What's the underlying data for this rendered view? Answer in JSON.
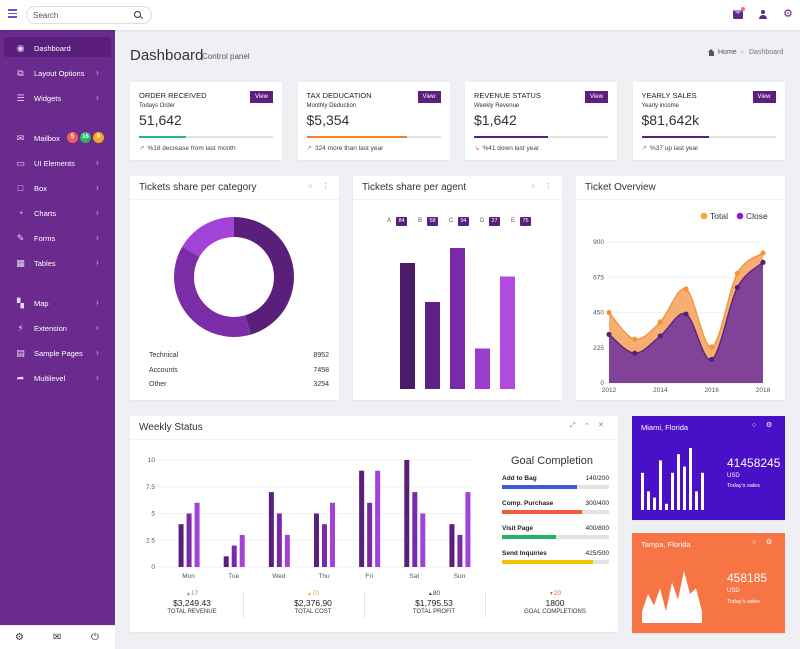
{
  "search": {
    "placeholder": "Search"
  },
  "sidebar": {
    "items": [
      {
        "label": "Dashboard",
        "icon": "dashboard-icon",
        "glyph": "◉",
        "chevron": false
      },
      {
        "label": "Layout Options",
        "icon": "layout-icon",
        "glyph": "⧉",
        "chevron": true
      },
      {
        "label": "Widgets",
        "icon": "widgets-icon",
        "glyph": "☰",
        "chevron": true
      },
      {
        "label": "Mailbox",
        "icon": "mailbox-icon",
        "glyph": "✉",
        "chevron": false
      },
      {
        "label": "UI Elements",
        "icon": "monitor-icon",
        "glyph": "▭",
        "chevron": true
      },
      {
        "label": "Box",
        "icon": "box-icon",
        "glyph": "□",
        "chevron": true
      },
      {
        "label": "Charts",
        "icon": "pie-chart-icon",
        "glyph": "◔",
        "chevron": true
      },
      {
        "label": "Forms",
        "icon": "edit-icon",
        "glyph": "✎",
        "chevron": true
      },
      {
        "label": "Tables",
        "icon": "table-icon",
        "glyph": "▦",
        "chevron": true
      },
      {
        "label": "Map",
        "icon": "map-icon",
        "glyph": "▚",
        "chevron": true
      },
      {
        "label": "Extension",
        "icon": "plug-icon",
        "glyph": "⚡",
        "chevron": true
      },
      {
        "label": "Sample Pages",
        "icon": "file-icon",
        "glyph": "▤",
        "chevron": true
      },
      {
        "label": "Multilevel",
        "icon": "share-icon",
        "glyph": "➦",
        "chevron": true
      }
    ],
    "mail_badges": [
      {
        "text": "5",
        "color": "#f25c5c"
      },
      {
        "text": "16",
        "color": "#27b56b"
      },
      {
        "text": "9",
        "color": "#f5a623"
      }
    ],
    "bottom_icons": [
      "settings-icon",
      "envelope-icon",
      "power-icon"
    ]
  },
  "page": {
    "title": "Dashboard",
    "subtitle": "Control panel",
    "breadcrumb_home": "Home",
    "breadcrumb_current": "Dashboard"
  },
  "stats": [
    {
      "title": "ORDER RECEIVED",
      "sub": "Todays Order",
      "value": "51,642",
      "note": "%18 decrease from last month",
      "progress": 0.35,
      "color": "#2fb380",
      "arrow": "↗",
      "view": "View"
    },
    {
      "title": "TAX DEDUCATION",
      "sub": "Monthly Deduction",
      "value": "$5,354",
      "note": "324 more than last year",
      "progress": 0.75,
      "color": "#f77f27",
      "arrow": "↗",
      "view": "View"
    },
    {
      "title": "REVENUE STATUS",
      "sub": "Weekly Revenue",
      "value": "$1,642",
      "note": "%41 down last year",
      "progress": 0.55,
      "color": "#5a1f7a",
      "arrow": "↘",
      "view": "View"
    },
    {
      "title": "YEARLY SALES",
      "sub": "Yearly income",
      "value": "$81,642k",
      "note": "%37 up last year",
      "progress": 0.5,
      "color": "#5a1f7a",
      "arrow": "↗",
      "view": "View"
    }
  ],
  "tickets_category": {
    "title": "Tickets share per category",
    "rows": [
      {
        "label": "Technical",
        "value": "8952"
      },
      {
        "label": "Accounts",
        "value": "7458"
      },
      {
        "label": "Other",
        "value": "3254"
      }
    ]
  },
  "tickets_agent": {
    "title": "Tickets share per agent"
  },
  "ticket_overview": {
    "title": "Ticket Overview"
  },
  "weekly": {
    "title": "Weekly Status"
  },
  "goal": {
    "title": "Goal Completion",
    "items": [
      {
        "label": "Add to Bag",
        "value": "140/200",
        "progress": 0.7,
        "color": "#3b5bdb"
      },
      {
        "label": "Comp. Purchase",
        "value": "300/400",
        "progress": 0.75,
        "color": "#f25c3c"
      },
      {
        "label": "Visit Page",
        "value": "400/800",
        "progress": 0.5,
        "color": "#1fb36b"
      },
      {
        "label": "Send Inquiries",
        "value": "425/500",
        "progress": 0.85,
        "color": "#f5c400"
      }
    ]
  },
  "weekly_footer": [
    {
      "delta": "17",
      "dir": "up",
      "color": "#2fb380",
      "value": "$3,249.43",
      "label": "TOTAL REVENUE"
    },
    {
      "delta": "70",
      "dir": "up",
      "color": "#f5a623",
      "value": "$2,376.90",
      "label": "TOTAL COST"
    },
    {
      "delta": "80",
      "dir": "up",
      "color": "#5a1f7a",
      "value": "$1,795.53",
      "label": "TOTAL PROFIT"
    },
    {
      "delta": "20",
      "dir": "down",
      "color": "#f25c3c",
      "value": "1800",
      "label": "GOAL COMPLETIONS"
    }
  ],
  "cities": [
    {
      "city": "Miami, Florida",
      "value": "41458245",
      "currency": "USD",
      "caption": "Today's sales",
      "color": "#4a10c8"
    },
    {
      "city": "Tampa, Florida",
      "value": "458185",
      "currency": "USD",
      "caption": "Today's sales",
      "color": "#f77545"
    }
  ],
  "chart_data": [
    {
      "type": "pie",
      "variant": "donut",
      "categories": [
        "Technical",
        "Accounts",
        "Other"
      ],
      "values": [
        8952,
        7458,
        3254
      ],
      "colors": [
        "#5a1f7a",
        "#7b2da8",
        "#a342d6"
      ]
    },
    {
      "type": "bar",
      "categories": [
        "A",
        "B",
        "C",
        "D",
        "E"
      ],
      "values": [
        84,
        58,
        94,
        27,
        75
      ],
      "colors": [
        "#4b1a68",
        "#5e2085",
        "#7a2aa8",
        "#9a3dcc",
        "#b24ae0"
      ],
      "ylim": [
        0,
        100
      ]
    },
    {
      "type": "area",
      "x": [
        2012,
        2013,
        2014,
        2015,
        2016,
        2017,
        2018
      ],
      "series": [
        {
          "name": "Total",
          "values": [
            450,
            280,
            390,
            600,
            230,
            700,
            830
          ],
          "color": "#f5a05a"
        },
        {
          "name": "Close",
          "values": [
            310,
            190,
            300,
            440,
            150,
            610,
            770
          ],
          "color": "#7a3d9a"
        }
      ],
      "yticks": [
        0,
        225,
        450,
        675,
        900
      ],
      "xticks": [
        2012,
        2014,
        2016,
        2018
      ],
      "ylim": [
        0,
        900
      ],
      "legend": "top-right"
    },
    {
      "type": "bar",
      "categories": [
        "Mon",
        "Tue",
        "Wed",
        "Thu",
        "Fri",
        "Sat",
        "Sun"
      ],
      "series": [
        {
          "values": [
            4,
            1,
            7,
            5,
            9,
            10,
            4
          ],
          "color": "#5a1f7a"
        },
        {
          "values": [
            5,
            2,
            5,
            4,
            6,
            7,
            3
          ],
          "color": "#7a2aa8"
        },
        {
          "values": [
            6,
            3,
            3,
            6,
            9,
            5,
            7
          ],
          "color": "#a342d6"
        }
      ],
      "yticks": [
        0,
        2.5,
        5,
        7.5,
        10
      ],
      "ylim": [
        0,
        10
      ]
    },
    {
      "type": "bar",
      "values": [
        6,
        3,
        2,
        8,
        1,
        6,
        9,
        7,
        10,
        3,
        6
      ],
      "color": "#ffffff",
      "ylim": [
        0,
        10
      ]
    },
    {
      "type": "area",
      "values": [
        2,
        5,
        3,
        6,
        2,
        7,
        4,
        9,
        5,
        6,
        2
      ],
      "color": "#ffffff",
      "ylim": [
        0,
        10
      ]
    }
  ]
}
